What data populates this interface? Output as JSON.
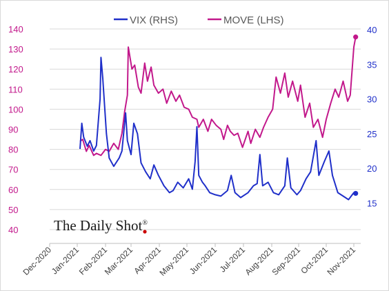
{
  "chart_data": {
    "type": "line",
    "title": "",
    "watermark": "The Daily Shot",
    "watermark_mark": "®",
    "legend": {
      "position": "top",
      "entries": [
        "VIX (RHS)",
        "MOVE (LHS)"
      ]
    },
    "colors": {
      "VIX (RHS)": "#1f2fc9",
      "MOVE (LHS)": "#c2188b"
    },
    "grid": true,
    "x_ticks": [
      "Dec-2020",
      "Jan-2021",
      "Feb-2021",
      "Mar-2021",
      "Apr-2021",
      "May-2021",
      "Jun-2021",
      "Jul-2021",
      "Aug-2021",
      "Sep-2021",
      "Oct-2021",
      "Nov-2021"
    ],
    "left_axis": {
      "series": "MOVE (LHS)",
      "range": [
        30,
        140
      ],
      "ticks": [
        "40",
        "50",
        "60",
        "70",
        "80",
        "90",
        "100",
        "110",
        "120",
        "130",
        "140"
      ]
    },
    "right_axis": {
      "series": "VIX (RHS)",
      "range": [
        10,
        40
      ],
      "ticks": [
        "15",
        "20",
        "25",
        "30",
        "35",
        "40"
      ]
    },
    "series": [
      {
        "name": "MOVE (LHS)",
        "axis": "left",
        "dates": [
          "2021-01-04",
          "2021-01-07",
          "2021-01-11",
          "2021-01-14",
          "2021-01-19",
          "2021-01-22",
          "2021-01-27",
          "2021-02-01",
          "2021-02-05",
          "2021-02-10",
          "2021-02-15",
          "2021-02-19",
          "2021-02-22",
          "2021-02-25",
          "2021-02-26",
          "2021-03-02",
          "2021-03-05",
          "2021-03-09",
          "2021-03-12",
          "2021-03-16",
          "2021-03-19",
          "2021-03-23",
          "2021-03-26",
          "2021-03-31",
          "2021-04-05",
          "2021-04-09",
          "2021-04-14",
          "2021-04-19",
          "2021-04-23",
          "2021-04-28",
          "2021-05-03",
          "2021-05-07",
          "2021-05-12",
          "2021-05-14",
          "2021-05-19",
          "2021-05-24",
          "2021-05-28",
          "2021-06-02",
          "2021-06-07",
          "2021-06-10",
          "2021-06-14",
          "2021-06-17",
          "2021-06-21",
          "2021-06-25",
          "2021-06-30",
          "2021-07-06",
          "2021-07-09",
          "2021-07-14",
          "2021-07-19",
          "2021-07-23",
          "2021-07-28",
          "2021-08-02",
          "2021-08-06",
          "2021-08-11",
          "2021-08-16",
          "2021-08-20",
          "2021-08-25",
          "2021-08-31",
          "2021-09-03",
          "2021-09-08",
          "2021-09-13",
          "2021-09-17",
          "2021-09-22",
          "2021-09-27",
          "2021-10-01",
          "2021-10-06",
          "2021-10-11",
          "2021-10-15",
          "2021-10-20",
          "2021-10-25",
          "2021-10-28",
          "2021-11-01",
          "2021-11-03"
        ],
        "values": [
          84,
          85,
          79,
          82,
          77,
          78,
          77,
          80,
          79,
          83,
          80,
          88,
          99,
          107,
          131,
          120,
          122,
          111,
          108,
          123,
          114,
          121,
          112,
          108,
          110,
          103,
          109,
          104,
          107,
          101,
          100,
          96,
          95,
          91,
          95,
          89,
          95,
          92,
          90,
          85,
          92,
          89,
          87,
          88,
          81,
          89,
          83,
          90,
          86,
          91,
          96,
          100,
          116,
          108,
          118,
          106,
          114,
          104,
          112,
          96,
          103,
          91,
          95,
          86,
          95,
          103,
          110,
          106,
          114,
          104,
          107,
          131,
          136
        ]
      },
      {
        "name": "VIX (RHS)",
        "axis": "right",
        "dates": [
          "2021-01-04",
          "2021-01-06",
          "2021-01-08",
          "2021-01-12",
          "2021-01-15",
          "2021-01-19",
          "2021-01-22",
          "2021-01-26",
          "2021-01-27",
          "2021-01-29",
          "2021-02-02",
          "2021-02-05",
          "2021-02-10",
          "2021-02-16",
          "2021-02-19",
          "2021-02-23",
          "2021-02-25",
          "2021-03-01",
          "2021-03-04",
          "2021-03-08",
          "2021-03-12",
          "2021-03-17",
          "2021-03-22",
          "2021-03-26",
          "2021-03-31",
          "2021-04-06",
          "2021-04-12",
          "2021-04-16",
          "2021-04-21",
          "2021-04-27",
          "2021-05-03",
          "2021-05-07",
          "2021-05-10",
          "2021-05-12",
          "2021-05-14",
          "2021-05-18",
          "2021-05-21",
          "2021-05-26",
          "2021-06-01",
          "2021-06-07",
          "2021-06-14",
          "2021-06-18",
          "2021-06-22",
          "2021-06-28",
          "2021-07-06",
          "2021-07-12",
          "2021-07-16",
          "2021-07-19",
          "2021-07-22",
          "2021-07-28",
          "2021-08-03",
          "2021-08-09",
          "2021-08-16",
          "2021-08-19",
          "2021-08-23",
          "2021-08-30",
          "2021-09-03",
          "2021-09-09",
          "2021-09-14",
          "2021-09-20",
          "2021-09-23",
          "2021-09-29",
          "2021-10-04",
          "2021-10-08",
          "2021-10-14",
          "2021-10-20",
          "2021-10-26",
          "2021-11-01",
          "2021-11-03"
        ],
        "values": [
          22.8,
          26.5,
          24.5,
          23.2,
          24.0,
          22.5,
          23.3,
          30.0,
          36.0,
          33.0,
          25.0,
          21.5,
          20.3,
          21.5,
          22.5,
          28.0,
          24.0,
          22.0,
          26.5,
          25.0,
          20.8,
          19.5,
          18.5,
          20.5,
          19.0,
          17.5,
          16.5,
          16.8,
          18.0,
          17.2,
          18.5,
          17.0,
          21.0,
          26.0,
          19.0,
          18.0,
          17.5,
          16.5,
          16.2,
          16.0,
          16.8,
          19.0,
          16.5,
          15.8,
          16.5,
          17.5,
          17.8,
          22.0,
          17.5,
          18.0,
          16.5,
          16.2,
          17.5,
          21.5,
          17.2,
          16.2,
          16.8,
          18.5,
          19.5,
          24.0,
          19.0,
          21.0,
          22.5,
          19.0,
          16.5,
          16.0,
          15.5,
          16.5,
          16.4
        ]
      }
    ]
  }
}
